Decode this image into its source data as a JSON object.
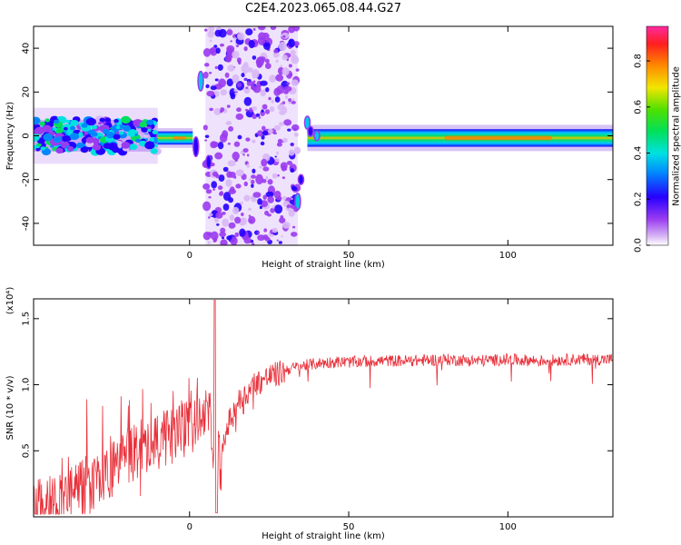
{
  "title": "C2E4.2023.065.08.44.G27",
  "chart_data": [
    {
      "type": "heatmap",
      "xlabel": "Height of straight line (km)",
      "ylabel": "Frequency (Hz)",
      "xlim": [
        -49,
        133
      ],
      "ylim": [
        -50,
        50
      ],
      "xticks": [
        0,
        50,
        100
      ],
      "yticks": [
        -40,
        -20,
        0,
        20,
        40
      ],
      "colorbar": {
        "label": "Normalized spectral amplitude",
        "range": [
          0,
          0.95
        ],
        "ticks": [
          "0.0",
          "0.2",
          "0.4",
          "0.6",
          "0.8"
        ]
      },
      "features": [
        {
          "x_start": -49,
          "x_end": -10,
          "freq_center": 0,
          "freq_halfwidth": 8,
          "amplitude": 0.35,
          "pattern": "noisy"
        },
        {
          "x_start": -10,
          "x_end": 1,
          "freq_center": -1,
          "freq_halfwidth": 3,
          "amplitude": 0.8,
          "pattern": "narrow"
        },
        {
          "x_start": 5,
          "x_end": 34,
          "freq_center": 0,
          "freq_halfwidth": 50,
          "amplitude": 0.12,
          "pattern": "scattered"
        },
        {
          "x_start": 37,
          "x_end": 133,
          "freq_center": -1,
          "freq_halfwidth": 4,
          "amplitude": 0.55,
          "pattern": "narrow"
        }
      ]
    },
    {
      "type": "line",
      "xlabel": "Height of straight line (km)",
      "ylabel": "SNR (10 * v/v)",
      "multiplier": "(x10⁴)",
      "xlim": [
        -49,
        133
      ],
      "ylim": [
        0.0,
        1.65
      ],
      "xticks": [
        0,
        50,
        100
      ],
      "yticks": [
        0.5,
        1.0,
        1.5
      ],
      "color": "#e8303a",
      "series": [
        {
          "x": [
            -49,
            -45,
            -40,
            -35,
            -30,
            -25,
            -20,
            -15,
            -10,
            -5,
            0,
            3,
            6,
            8,
            10,
            12,
            15,
            18,
            20,
            25,
            30,
            35,
            40,
            45,
            50,
            60,
            70,
            80,
            90,
            100,
            110,
            120,
            133
          ],
          "values": [
            0.12,
            0.15,
            0.18,
            0.24,
            0.3,
            0.38,
            0.48,
            0.56,
            0.62,
            0.66,
            0.72,
            0.78,
            0.82,
            0.55,
            0.45,
            0.72,
            0.88,
            0.95,
            1.02,
            1.08,
            1.12,
            1.15,
            1.17,
            1.18,
            1.18,
            1.19,
            1.19,
            1.2,
            1.19,
            1.2,
            1.19,
            1.2,
            1.2
          ]
        }
      ]
    }
  ]
}
